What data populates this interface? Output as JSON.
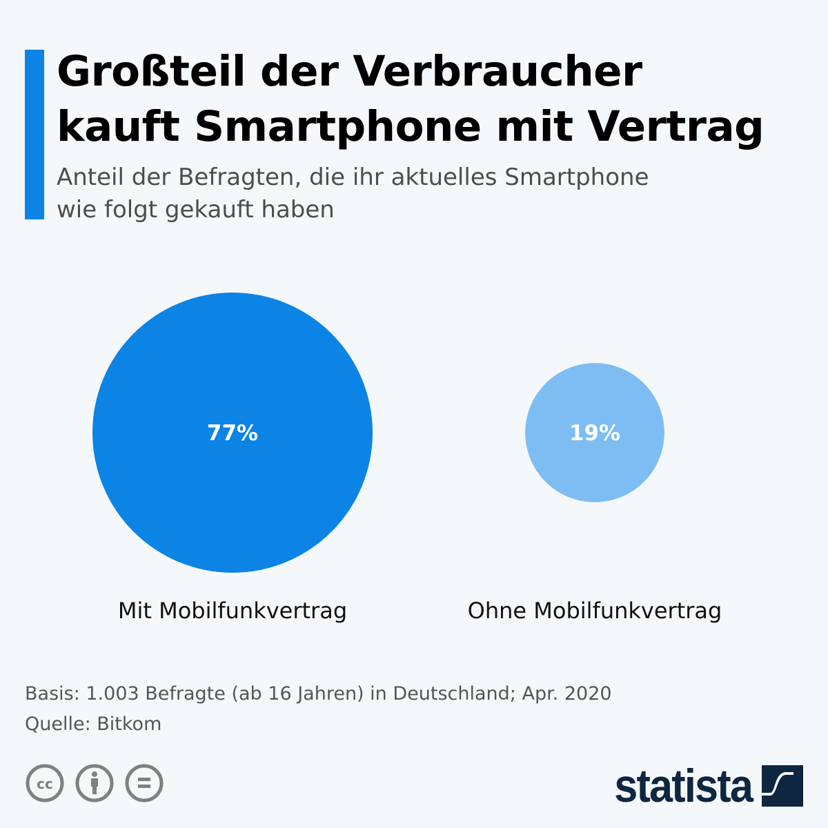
{
  "header": {
    "title_line1": "Großteil der Verbraucher",
    "title_line2": "kauft Smartphone mit Vertrag",
    "subtitle_line1": "Anteil der Befragten, die ihr aktuelles Smartphone",
    "subtitle_line2": "wie folgt gekauft haben"
  },
  "chart_data": {
    "type": "bubble",
    "unit": "%",
    "categories": [
      "Mit Mobilfunkvertrag",
      "Ohne Mobilfunkvertrag"
    ],
    "values": [
      77,
      19
    ],
    "labels": [
      "77%",
      "19%"
    ],
    "colors": [
      "#0b84e6",
      "#7dbdf2"
    ],
    "size_encoding": "area"
  },
  "footer": {
    "basis": "Basis: 1.003 Befragte (ab 16 Jahren) in Deutschland; Apr. 2020",
    "source": "Quelle: Bitkom",
    "brand": "statista"
  },
  "icons": [
    "cc-icon",
    "attribution-icon",
    "no-derivatives-icon",
    "statista-logo-icon"
  ],
  "colors": {
    "accent": "#0b84e6",
    "background": "#f4f8fb",
    "brand": "#0f2640"
  }
}
